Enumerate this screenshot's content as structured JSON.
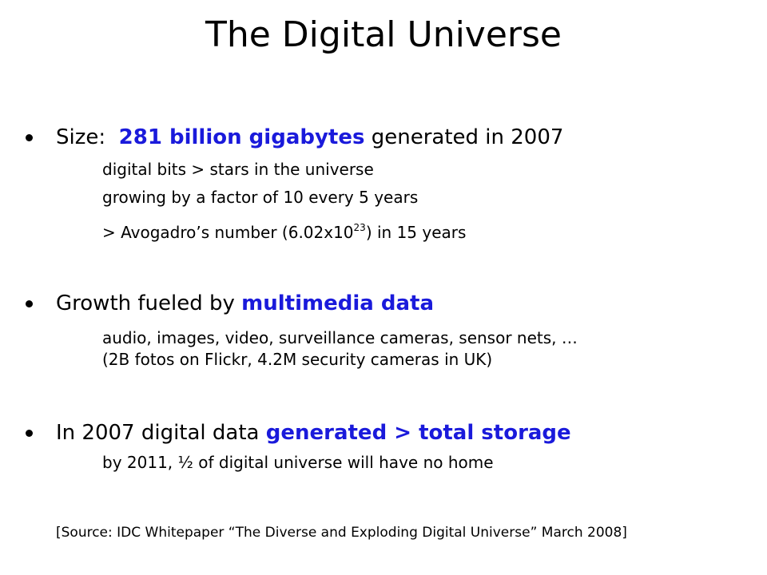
{
  "title": "The Digital Universe",
  "bullets": [
    {
      "parts": [
        {
          "text": "Size:  ",
          "style": "plain"
        },
        {
          "text": "281 billion gigabytes",
          "style": "highlight"
        },
        {
          "text": " generated in 2007",
          "style": "plain"
        }
      ],
      "sub": [
        {
          "parts": [
            {
              "text": "digital bits > stars in the universe",
              "style": "plain"
            }
          ]
        },
        {
          "parts": [
            {
              "text": "growing by a factor of 10 every 5 years",
              "style": "plain"
            }
          ]
        },
        {
          "parts": [
            {
              "text": "> Avogadro’s number (6.02x10",
              "style": "plain"
            },
            {
              "text": "23",
              "style": "sup"
            },
            {
              "text": ") in 15 years",
              "style": "plain"
            }
          ]
        }
      ]
    },
    {
      "parts": [
        {
          "text": "Growth fueled by ",
          "style": "plain"
        },
        {
          "text": "multimedia data",
          "style": "highlight"
        }
      ],
      "sub": [
        {
          "parts": [
            {
              "text": "audio, images, video, surveillance cameras, sensor nets, …",
              "style": "plain"
            }
          ]
        },
        {
          "parts": [
            {
              "text": "(2B fotos on Flickr, 4.2M security cameras in UK)",
              "style": "plain"
            }
          ]
        }
      ]
    },
    {
      "parts": [
        {
          "text": "In 2007 digital data ",
          "style": "plain"
        },
        {
          "text": "generated > total storage",
          "style": "highlight"
        }
      ],
      "sub": [
        {
          "parts": [
            {
              "text": "by 2011, ½ of digital universe will have no home",
              "style": "plain"
            }
          ]
        }
      ]
    }
  ],
  "source": "[Source: IDC Whitepaper “The Diverse and Exploding Digital Universe” March 2008]"
}
